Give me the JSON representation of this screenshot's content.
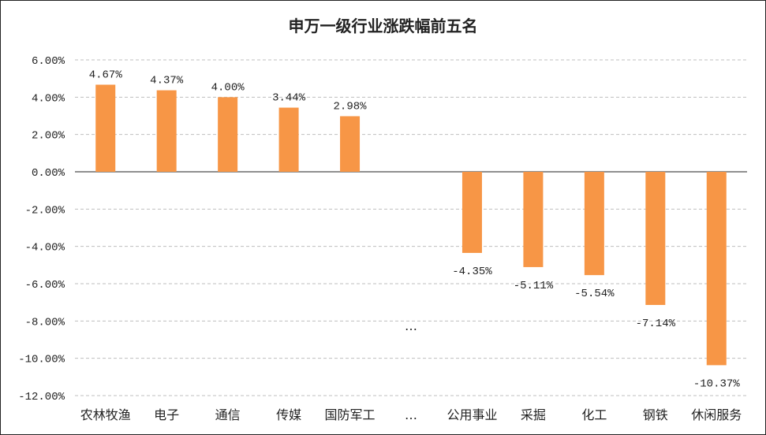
{
  "chart_data": {
    "type": "bar",
    "title": "申万一级行业涨跌幅前五名",
    "xlabel": "",
    "ylabel": "",
    "ylim": [
      -12,
      6
    ],
    "ytick_step": 2,
    "ytick_labels": [
      "6.00%",
      "4.00%",
      "2.00%",
      "0.00%",
      "-2.00%",
      "-4.00%",
      "-6.00%",
      "-8.00%",
      "-10.00%",
      "-12.00%"
    ],
    "categories": [
      "农林牧渔",
      "电子",
      "通信",
      "传媒",
      "国防军工",
      "…",
      "公用事业",
      "采掘",
      "化工",
      "钢铁",
      "休闲服务"
    ],
    "values": [
      4.67,
      4.37,
      4.0,
      3.44,
      2.98,
      null,
      -4.35,
      -5.11,
      -5.54,
      -7.14,
      -10.37
    ],
    "data_labels": [
      "4.67%",
      "4.37%",
      "4.00%",
      "3.44%",
      "2.98%",
      "…",
      "-4.35%",
      "-5.11%",
      "-5.54%",
      "-7.14%",
      "-10.37%"
    ],
    "bar_color": "#F79646",
    "grid": true,
    "grid_style": "dashed",
    "legend": "none"
  }
}
